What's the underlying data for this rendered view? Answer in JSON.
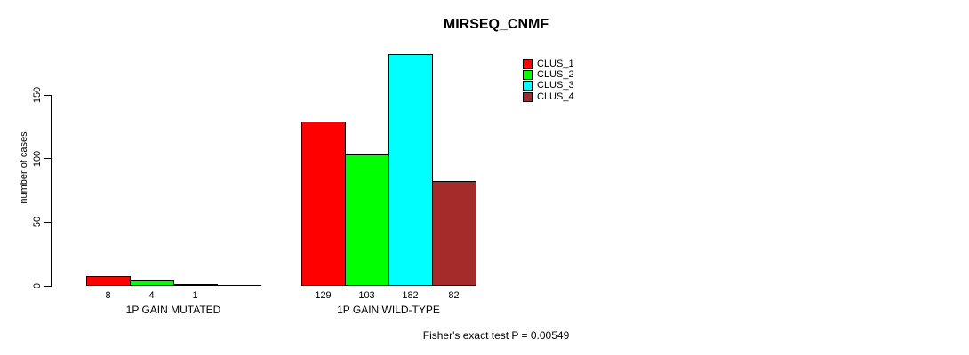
{
  "chart_data": {
    "type": "bar",
    "title": "MIRSEQ_CNMF",
    "ylabel": "number of cases",
    "ylim": [
      0,
      150
    ],
    "yticks": [
      0,
      50,
      100,
      150
    ],
    "grid": false,
    "legend_position": "top-right",
    "legend": [
      {
        "name": "CLUS_1",
        "color": "#FF0000"
      },
      {
        "name": "CLUS_2",
        "color": "#00FF00"
      },
      {
        "name": "CLUS_3",
        "color": "#00FFFF"
      },
      {
        "name": "CLUS_4",
        "color": "#A52A2A"
      }
    ],
    "categories": [
      "1P GAIN MUTATED",
      "1P GAIN WILD-TYPE"
    ],
    "groups": [
      {
        "label": "1P GAIN MUTATED",
        "values": [
          8,
          4,
          1,
          0
        ],
        "bar_labels": [
          "8",
          "4",
          "1",
          ""
        ]
      },
      {
        "label": "1P GAIN WILD-TYPE",
        "values": [
          129,
          103,
          182,
          82
        ],
        "bar_labels": [
          "129",
          "103",
          "182",
          "82"
        ]
      }
    ],
    "annotation": "Fisher's exact test P = 0.00549"
  },
  "colors": {
    "axis": "#000000",
    "background": "#FFFFFF"
  }
}
